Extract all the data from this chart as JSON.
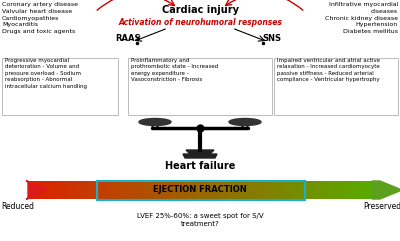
{
  "title_cardiac": "Cardiac injury",
  "title_neurohumoral": "Activation of neurohumoral responses",
  "raas": "RAAS",
  "sns": "SNS",
  "left_causes": "Coronary artery disease\nValvular heart disease\nCardiomyopathies\nMyocarditis\nDrugs and toxic agents",
  "right_causes": "Infiltrative myocardial\ndiseases\nChronic kidney disease\nHypertension\nDiabetes mellitus",
  "left_box": "Progressive myocardial\ndeterioration - Volume and\npressure overload - Sodium\nreabsorption - Abnormal\nintracellular calcium handling",
  "center_box": "Proinflammatory and\nprothrombotic state - Increased\nenergy expenditure -\nVasoconstriction - Fibrosis",
  "right_box": "Impaired ventricular and atrial active\nrelaxation - Increased cardiomyocyte\npassive stiffness - Reduced arterial\ncompliance - Ventricular hypertrophy",
  "heart_failure": "Heart failure",
  "reduced_label": "Reduced",
  "preserved_label": "Preserved",
  "ef_label": "EJECTION FRACTION",
  "sweet_spot": "LVEF 25%-60%: a sweet spot for S/V\ntreatment?"
}
